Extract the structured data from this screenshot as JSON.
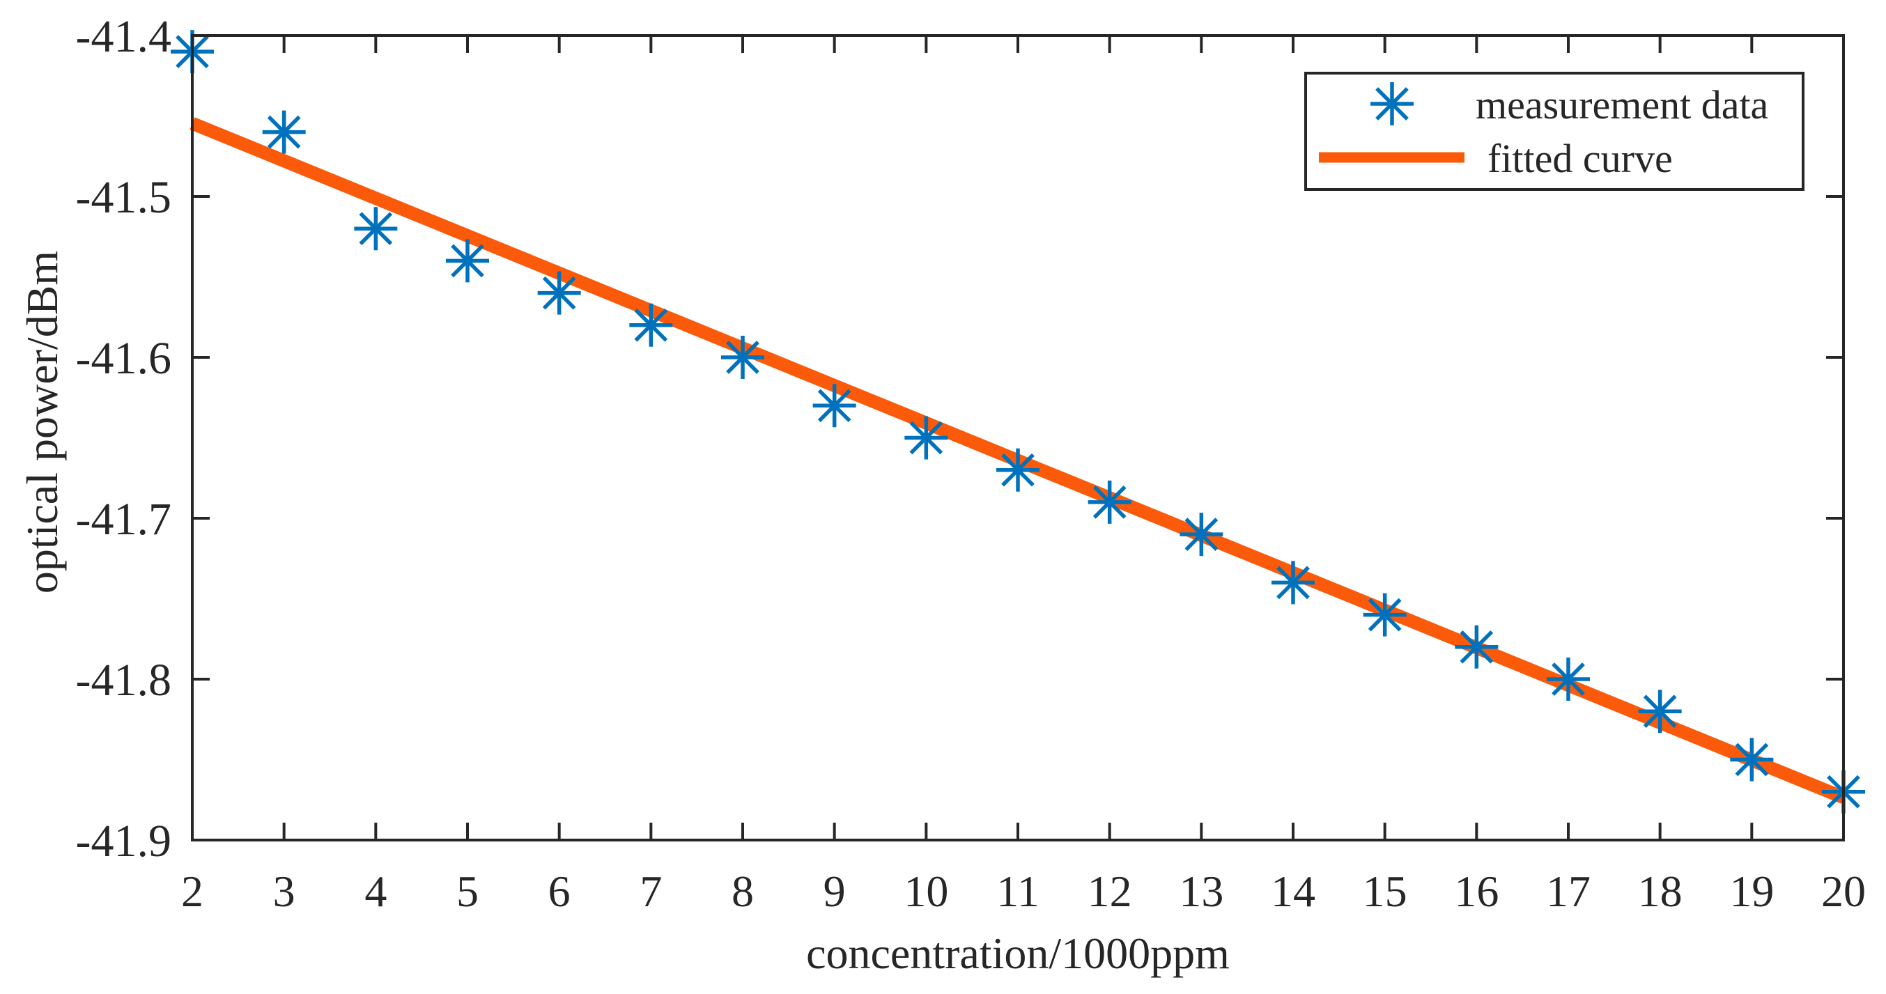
{
  "chart_data": {
    "type": "scatter",
    "title": "",
    "xlabel": "concentration/1000ppm",
    "ylabel": "optical power/dBm",
    "xlim": [
      2,
      20
    ],
    "ylim": [
      -41.9,
      -41.4
    ],
    "xticks": [
      2,
      3,
      4,
      5,
      6,
      7,
      8,
      9,
      10,
      11,
      12,
      13,
      14,
      15,
      16,
      17,
      18,
      19,
      20
    ],
    "yticks": [
      -41.4,
      -41.5,
      -41.6,
      -41.7,
      -41.8,
      -41.9
    ],
    "ytick_labels": [
      "-41.4",
      "-41.5",
      "-41.6",
      "-41.7",
      "-41.8",
      "-41.9"
    ],
    "grid": false,
    "box": true,
    "legend_position": "northeast",
    "series": [
      {
        "name": "measurement data",
        "kind": "scatter",
        "marker": "asterisk",
        "color": "#0072BD",
        "x": [
          2,
          3,
          4,
          5,
          6,
          7,
          8,
          9,
          10,
          11,
          12,
          13,
          14,
          15,
          16,
          17,
          18,
          19,
          20
        ],
        "y": [
          -41.41,
          -41.46,
          -41.52,
          -41.54,
          -41.56,
          -41.58,
          -41.6,
          -41.63,
          -41.65,
          -41.67,
          -41.69,
          -41.71,
          -41.74,
          -41.76,
          -41.78,
          -41.8,
          -41.82,
          -41.85,
          -41.87
        ]
      },
      {
        "name": "fitted curve",
        "kind": "line",
        "color": "#FA5A0A",
        "x": [
          2,
          20
        ],
        "y": [
          -41.4546,
          -41.8736
        ]
      }
    ]
  },
  "legend": {
    "items": [
      {
        "label": "measurement data",
        "symbol": "asterisk",
        "color": "#0072BD"
      },
      {
        "label": "fitted curve",
        "symbol": "line",
        "color": "#FA5A0A"
      }
    ]
  }
}
